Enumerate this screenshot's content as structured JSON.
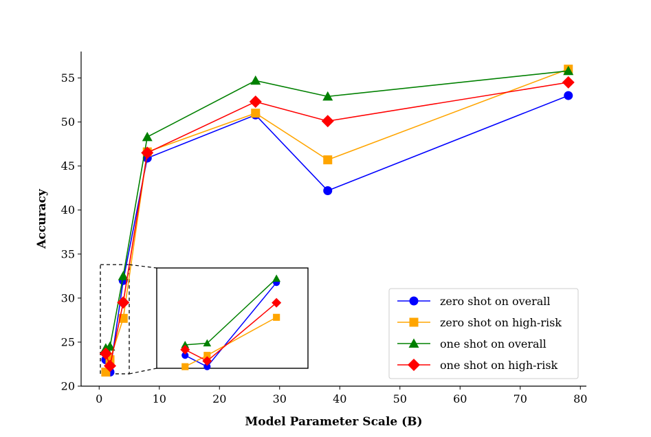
{
  "chart_data": {
    "type": "line",
    "title": "",
    "xlabel": "Model Parameter Scale (B)",
    "ylabel": "Accuracy",
    "xlim": [
      -3,
      81
    ],
    "ylim": [
      20,
      58
    ],
    "xticks": [
      0,
      10,
      20,
      30,
      40,
      50,
      60,
      70,
      80
    ],
    "yticks": [
      20,
      25,
      30,
      35,
      40,
      45,
      50,
      55
    ],
    "grid": false,
    "legend_position": "bottom-right",
    "x": [
      1.1,
      1.8,
      4,
      8,
      26,
      38,
      78
    ],
    "series": [
      {
        "name": "zero shot on overall",
        "color": "#0000ff",
        "marker": "circle",
        "values": [
          23.0,
          21.6,
          32.0,
          45.9,
          50.8,
          42.2,
          53.0
        ]
      },
      {
        "name": "zero shot on high-risk",
        "color": "#ffa500",
        "marker": "square",
        "values": [
          21.6,
          23.0,
          27.7,
          46.6,
          51.0,
          45.7,
          56.0
        ]
      },
      {
        "name": "one shot on overall",
        "color": "#008000",
        "marker": "triangle",
        "values": [
          24.3,
          24.5,
          32.5,
          48.3,
          54.7,
          52.9,
          55.8
        ]
      },
      {
        "name": "one shot on high-risk",
        "color": "#ff0000",
        "marker": "diamond",
        "values": [
          23.7,
          22.3,
          29.5,
          46.5,
          52.3,
          50.1,
          54.5
        ]
      }
    ],
    "inset": {
      "description": "zoom of lower-left region",
      "xlim": [
        0.2,
        5.0
      ],
      "ylim": [
        21.4,
        33.8
      ]
    }
  }
}
